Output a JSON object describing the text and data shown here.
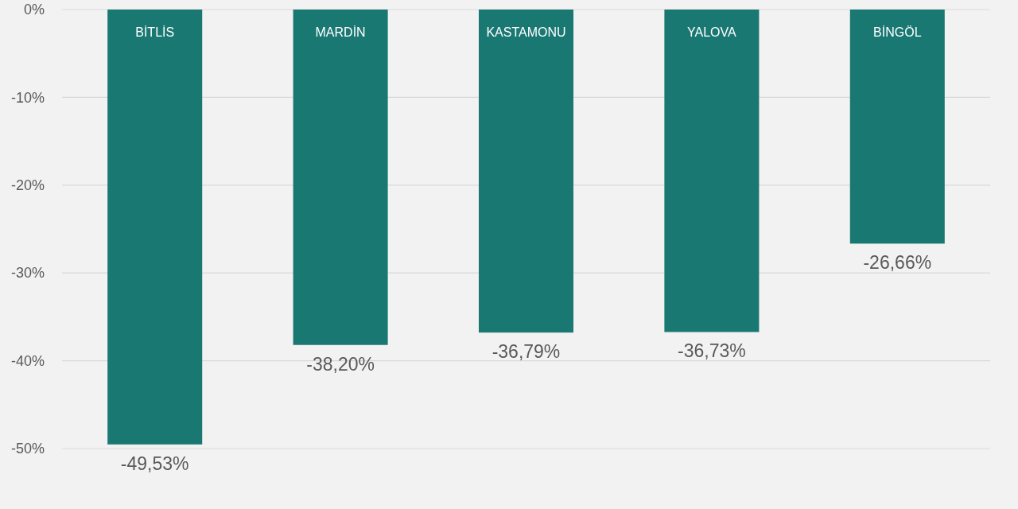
{
  "chart_data": {
    "type": "bar",
    "categories": [
      "BİTLİS",
      "MARDİN",
      "KASTAMONU",
      "YALOVA",
      "BİNGÖL"
    ],
    "values": [
      -49.53,
      -38.2,
      -36.79,
      -36.73,
      -26.66
    ],
    "value_labels": [
      "-49,53%",
      "-38,20%",
      "-36,79%",
      "-36,73%",
      "-26,66%"
    ],
    "color": "#1a7873",
    "ylim": [
      -50,
      0
    ],
    "yticks": [
      {
        "value": 0,
        "label": "0%"
      },
      {
        "value": -10,
        "label": "-10%"
      },
      {
        "value": -20,
        "label": "-20%"
      },
      {
        "value": -30,
        "label": "-30%"
      },
      {
        "value": -40,
        "label": "-40%"
      },
      {
        "value": -50,
        "label": "-50%"
      }
    ],
    "grid": "y"
  }
}
